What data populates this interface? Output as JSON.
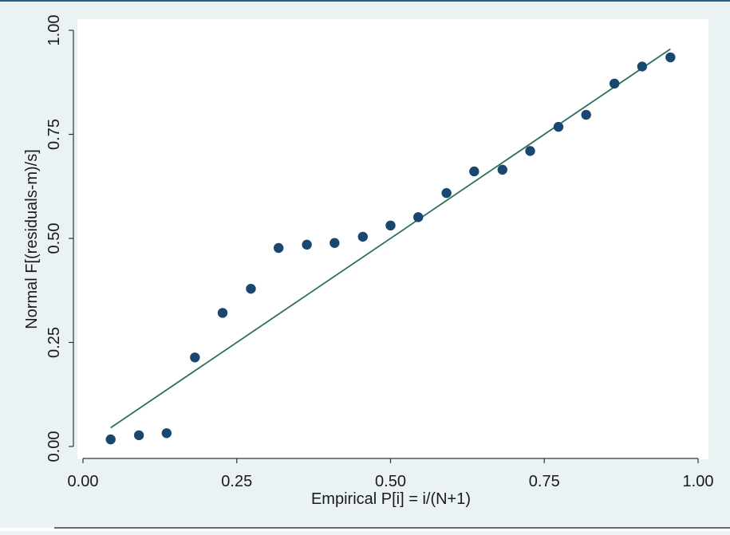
{
  "chart_data": {
    "type": "scatter",
    "title": "",
    "xlabel": "Empirical P[i] = i/(N+1)",
    "ylabel": "Normal F[(residuals-m)/s]",
    "xlim": [
      0,
      1
    ],
    "ylim": [
      0,
      1
    ],
    "xticks": [
      "0.00",
      "0.25",
      "0.50",
      "0.75",
      "1.00"
    ],
    "yticks": [
      "0.00",
      "0.25",
      "0.50",
      "0.75",
      "1.00"
    ],
    "grid": false,
    "legend": "none",
    "colors": {
      "points": "#1a476f",
      "reference_line": "#2d6e5f",
      "plot_background": "#ffffff",
      "outer_background": "#eaf2f3"
    },
    "series": [
      {
        "type": "scatter",
        "x": [
          0.045,
          0.091,
          0.136,
          0.182,
          0.227,
          0.273,
          0.318,
          0.364,
          0.409,
          0.455,
          0.5,
          0.545,
          0.591,
          0.636,
          0.682,
          0.727,
          0.773,
          0.818,
          0.864,
          0.909,
          0.955
        ],
        "y": [
          0.017,
          0.027,
          0.032,
          0.214,
          0.321,
          0.379,
          0.477,
          0.485,
          0.489,
          0.504,
          0.531,
          0.551,
          0.609,
          0.661,
          0.665,
          0.71,
          0.768,
          0.797,
          0.872,
          0.913,
          0.935
        ]
      },
      {
        "type": "line",
        "x": [
          0.045,
          0.955
        ],
        "y": [
          0.045,
          0.955
        ]
      }
    ]
  }
}
